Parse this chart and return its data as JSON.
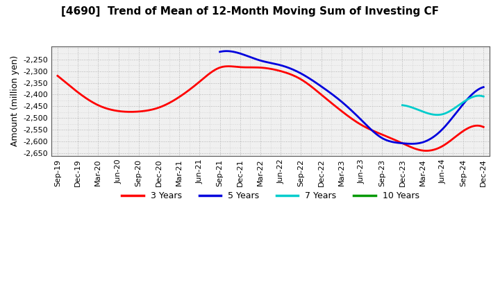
{
  "title": "[4690]  Trend of Mean of 12-Month Moving Sum of Investing CF",
  "ylabel": "Amount (million yen)",
  "ylim": [
    -2660,
    -2195
  ],
  "yticks": [
    -2650,
    -2600,
    -2550,
    -2500,
    -2450,
    -2400,
    -2350,
    -2300,
    -2250
  ],
  "background_color": "#ffffff",
  "plot_bg_color": "#f0f0f0",
  "grid_color": "#999999",
  "series": {
    "3 Years": {
      "color": "#ff0000",
      "values_idx": [
        0,
        1,
        2,
        3,
        4,
        5,
        6,
        7,
        8,
        9,
        10,
        11,
        12,
        13,
        14,
        15,
        16,
        17,
        18,
        19,
        20,
        21
      ],
      "values": [
        -2320,
        -2390,
        -2445,
        -2470,
        -2472,
        -2455,
        -2410,
        -2345,
        -2285,
        -2283,
        -2285,
        -2300,
        -2335,
        -2400,
        -2470,
        -2530,
        -2570,
        -2607,
        -2638,
        -2618,
        -2555,
        -2538
      ]
    },
    "5 Years": {
      "color": "#0000dd",
      "values_idx": [
        8,
        9,
        10,
        11,
        12,
        13,
        14,
        15,
        16,
        17,
        18,
        19,
        20,
        21
      ],
      "values": [
        -2218,
        -2225,
        -2255,
        -2275,
        -2310,
        -2365,
        -2430,
        -2510,
        -2585,
        -2607,
        -2603,
        -2545,
        -2440,
        -2368
      ]
    },
    "7 Years": {
      "color": "#00cccc",
      "values_idx": [
        17,
        18,
        19,
        20,
        21
      ],
      "values": [
        -2445,
        -2472,
        -2483,
        -2432,
        -2408
      ]
    },
    "10 Years": {
      "color": "#009900",
      "values_idx": [],
      "values": []
    }
  },
  "xtick_labels": [
    "Sep-19",
    "Dec-19",
    "Mar-20",
    "Jun-20",
    "Sep-20",
    "Dec-20",
    "Mar-21",
    "Jun-21",
    "Sep-21",
    "Dec-21",
    "Mar-22",
    "Jun-22",
    "Sep-22",
    "Dec-22",
    "Mar-23",
    "Jun-23",
    "Sep-23",
    "Dec-23",
    "Mar-24",
    "Jun-24",
    "Sep-24",
    "Dec-24"
  ],
  "legend_labels": [
    "3 Years",
    "5 Years",
    "7 Years",
    "10 Years"
  ],
  "legend_colors": [
    "#ff0000",
    "#0000dd",
    "#00cccc",
    "#009900"
  ]
}
